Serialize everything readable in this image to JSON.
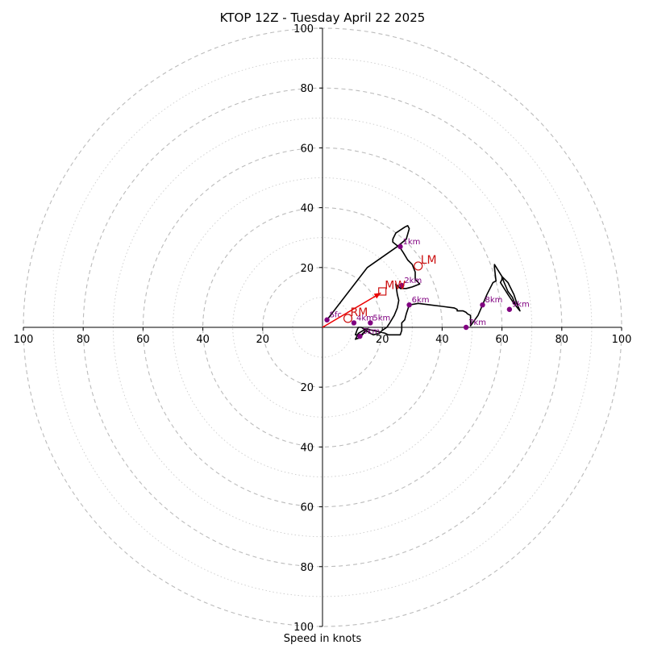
{
  "chart_data": {
    "type": "hodograph",
    "title": "KTOP 12Z - Tuesday April 22 2025",
    "xlabel": "Speed in knots",
    "xlim": [
      -100,
      100
    ],
    "ylim": [
      -100,
      100
    ],
    "tick_values": [
      20,
      40,
      60,
      80,
      100
    ],
    "x_tick_labels": [
      "100",
      "80",
      "60",
      "40",
      "20",
      "20",
      "40",
      "60",
      "80",
      "100"
    ],
    "y_tick_labels": [
      "100",
      "80",
      "60",
      "40",
      "20",
      "20",
      "40",
      "60",
      "80",
      "100"
    ],
    "grid": "on",
    "colors": {
      "hodograph_line": "#000000",
      "height_markers": "#800080",
      "storm_motion": "#cc1111",
      "mean_wind_arrow": "#ee0000",
      "grid": "#bbbbbb"
    },
    "hodograph_trace": [
      [
        1.5,
        2.5
      ],
      [
        15,
        20
      ],
      [
        25,
        27
      ],
      [
        28,
        29.5
      ],
      [
        29,
        33
      ],
      [
        28.5,
        34
      ],
      [
        27.5,
        33.5
      ],
      [
        24.5,
        31.5
      ],
      [
        23.5,
        29.5
      ],
      [
        23.5,
        28.5
      ],
      [
        26,
        26.5
      ],
      [
        27,
        25
      ],
      [
        28.5,
        22.5
      ],
      [
        30,
        21
      ],
      [
        31,
        18.5
      ],
      [
        31,
        16
      ],
      [
        32.5,
        14.5
      ],
      [
        30,
        13.5
      ],
      [
        28,
        13
      ],
      [
        26,
        13
      ],
      [
        24.5,
        14.5
      ],
      [
        25,
        11
      ],
      [
        25.5,
        9
      ],
      [
        25,
        6.5
      ],
      [
        24,
        4
      ],
      [
        22.5,
        1.5
      ],
      [
        21.5,
        0
      ],
      [
        20,
        -1
      ],
      [
        19,
        -2
      ],
      [
        17,
        -2.5
      ],
      [
        16,
        -2
      ],
      [
        14.5,
        -1
      ],
      [
        13,
        0
      ],
      [
        12,
        0
      ],
      [
        11.5,
        -1
      ],
      [
        11,
        -2.5
      ],
      [
        13,
        -2.5
      ],
      [
        15,
        -0.5
      ],
      [
        12.5,
        -3.5
      ],
      [
        11,
        -4
      ],
      [
        12,
        -2
      ],
      [
        14.5,
        -0.5
      ],
      [
        19,
        -1.5
      ],
      [
        21,
        -2
      ],
      [
        22,
        -2.5
      ],
      [
        26,
        -2.5
      ],
      [
        26.5,
        -1
      ],
      [
        26.5,
        1.5
      ],
      [
        27.5,
        2.5
      ],
      [
        28,
        4.5
      ],
      [
        29,
        7.5
      ],
      [
        32,
        8
      ],
      [
        36,
        7.5
      ],
      [
        40,
        7
      ],
      [
        44,
        6.5
      ],
      [
        45,
        6
      ],
      [
        45,
        5.5
      ],
      [
        47,
        5.5
      ],
      [
        48,
        5
      ],
      [
        48.5,
        4.5
      ],
      [
        49.5,
        4
      ],
      [
        49.5,
        0.5
      ],
      [
        52,
        4
      ],
      [
        53.5,
        7.5
      ],
      [
        55,
        11
      ],
      [
        57,
        15
      ],
      [
        58,
        15.5
      ],
      [
        57.5,
        20
      ],
      [
        57.5,
        21
      ],
      [
        60,
        17
      ],
      [
        62,
        15
      ],
      [
        64,
        11
      ],
      [
        65,
        8
      ],
      [
        66,
        5.5
      ],
      [
        64,
        8
      ],
      [
        62,
        11
      ],
      [
        59.5,
        15
      ],
      [
        60,
        16
      ],
      [
        60,
        17
      ],
      [
        60.5,
        15.5
      ],
      [
        62,
        12
      ],
      [
        63.5,
        10
      ],
      [
        64.5,
        7.5
      ]
    ],
    "height_markers": [
      {
        "label": "Sfc",
        "u": 1.5,
        "v": 2.5
      },
      {
        "label": "1km",
        "u": 26,
        "v": 27
      },
      {
        "label": "2km",
        "u": 26.5,
        "v": 14
      },
      {
        "label": "3km",
        "u": 12.5,
        "v": -3
      },
      {
        "label": "4km",
        "u": 10.5,
        "v": 1.5
      },
      {
        "label": "5km",
        "u": 16,
        "v": 1.5
      },
      {
        "label": "6km",
        "u": 29,
        "v": 7.5
      },
      {
        "label": "7km",
        "u": 48,
        "v": 0
      },
      {
        "label": "8km",
        "u": 53.5,
        "v": 7.5
      },
      {
        "label": "9km",
        "u": 62.5,
        "v": 6
      }
    ],
    "storm_motion": [
      {
        "label": "RM",
        "u": 8.5,
        "v": 3,
        "marker": "circle"
      },
      {
        "label": "LM",
        "u": 32,
        "v": 20.5,
        "marker": "circle"
      },
      {
        "label": "MW",
        "u": 20,
        "v": 12,
        "marker": "square"
      }
    ],
    "mean_wind_arrow": {
      "u": 19.5,
      "v": 11.5
    }
  }
}
